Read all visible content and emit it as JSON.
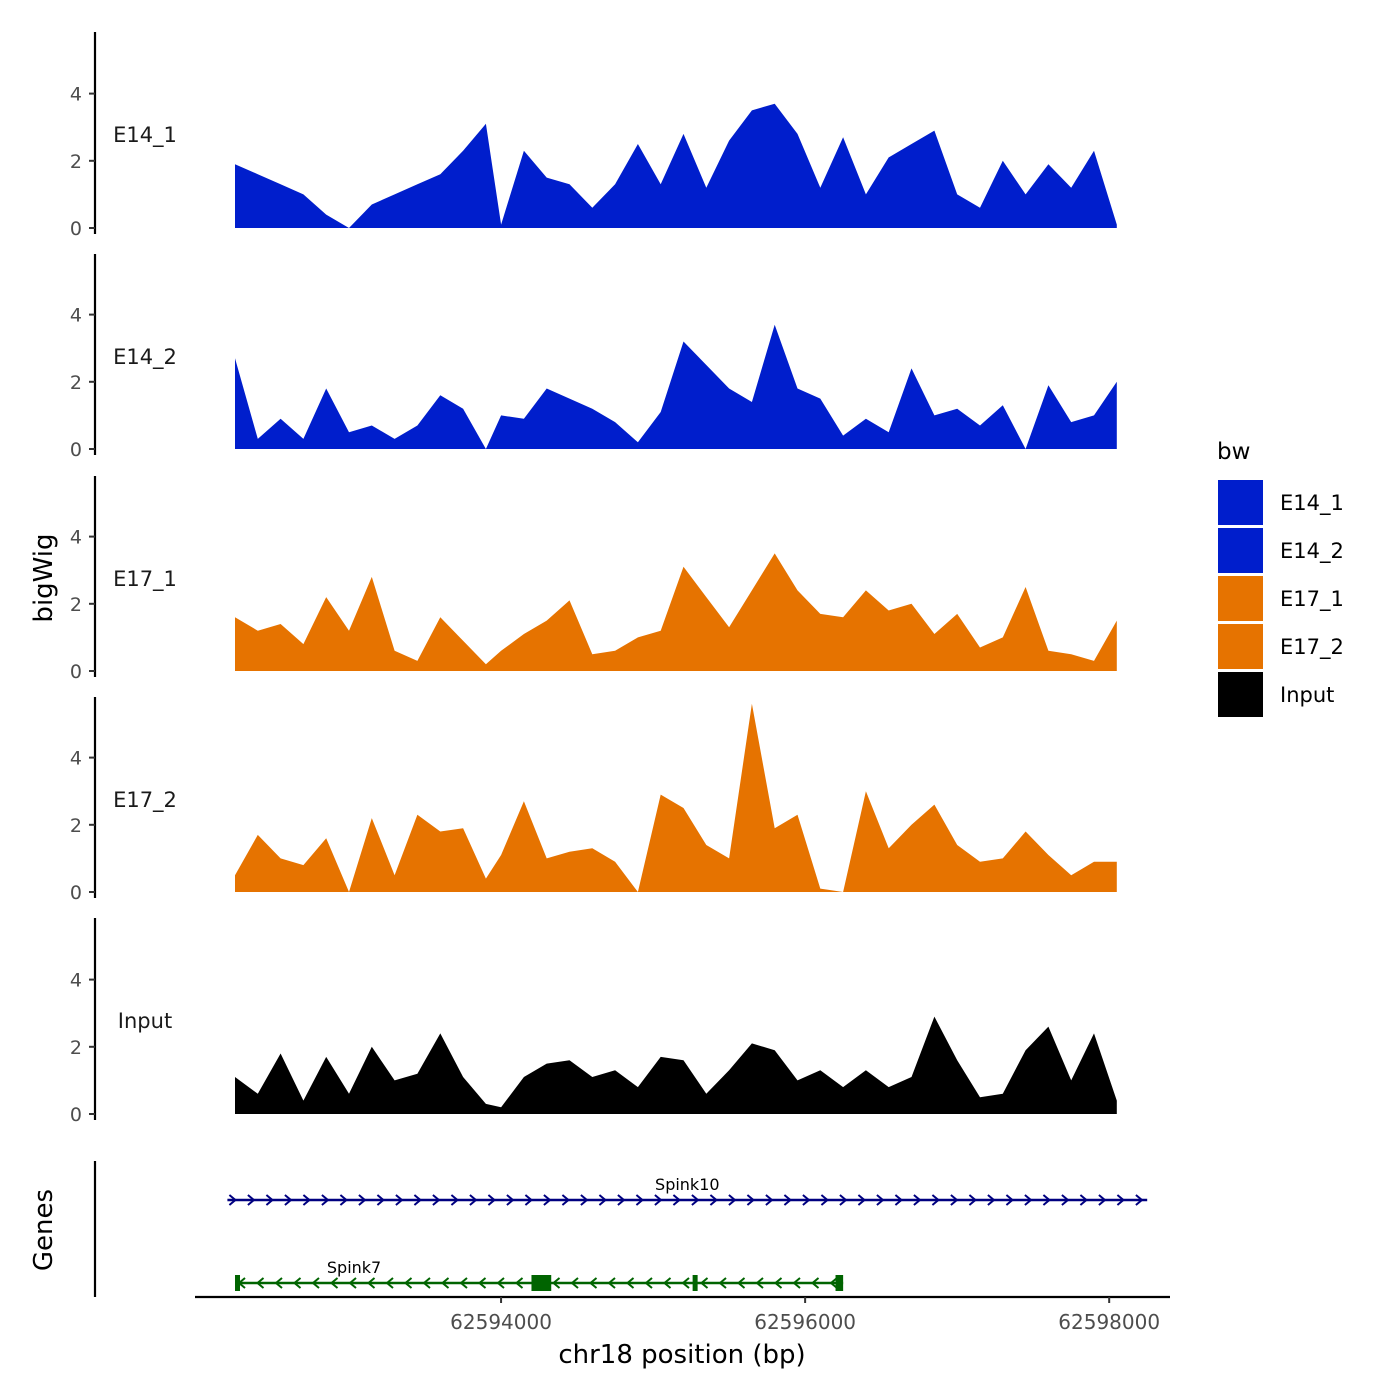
{
  "chart_data": {
    "type": "area",
    "ylabel": "bigWig",
    "xlabel": "chr18 position (bp)",
    "yticks": [
      0,
      2,
      4
    ],
    "ylim": [
      0,
      5.8
    ],
    "xlim": [
      62592000,
      62598400
    ],
    "xticks": [
      62594000,
      62596000,
      62598000
    ],
    "xtick_labels": [
      "62594000",
      "62596000",
      "62598000"
    ],
    "legend": {
      "title": "bw",
      "position": "right",
      "entries": [
        {
          "label": "E14_1",
          "color": "#001ECC"
        },
        {
          "label": "E14_2",
          "color": "#001ECC"
        },
        {
          "label": "E17_1",
          "color": "#E67300"
        },
        {
          "label": "E17_2",
          "color": "#E67300"
        },
        {
          "label": "Input",
          "color": "#000000"
        }
      ]
    },
    "series": [
      {
        "name": "E14_1",
        "color": "#001ECC",
        "x": [
          62592250,
          62592400,
          62592550,
          62592700,
          62592850,
          62593000,
          62593150,
          62593300,
          62593450,
          62593600,
          62593750,
          62593900,
          62594000,
          62594150,
          62594300,
          62594450,
          62594600,
          62594750,
          62594900,
          62595050,
          62595200,
          62595350,
          62595500,
          62595650,
          62595800,
          62595950,
          62596100,
          62596250,
          62596400,
          62596550,
          62596700,
          62596850,
          62597000,
          62597150,
          62597300,
          62597450,
          62597600,
          62597750,
          62597900,
          62598050
        ],
        "y": [
          1.9,
          1.6,
          1.3,
          1.0,
          0.4,
          0.0,
          0.7,
          1.0,
          1.3,
          1.6,
          2.3,
          3.1,
          0.1,
          2.3,
          1.5,
          1.3,
          0.6,
          1.3,
          2.5,
          1.3,
          2.8,
          1.2,
          2.6,
          3.5,
          3.7,
          2.8,
          1.2,
          2.7,
          1.0,
          2.1,
          2.5,
          2.9,
          1.0,
          0.6,
          2.0,
          1.0,
          1.9,
          1.2,
          2.3,
          0.1
        ]
      },
      {
        "name": "E14_2",
        "color": "#001ECC",
        "x": [
          62592250,
          62592400,
          62592550,
          62592700,
          62592850,
          62593000,
          62593150,
          62593300,
          62593450,
          62593600,
          62593750,
          62593900,
          62594000,
          62594150,
          62594300,
          62594450,
          62594600,
          62594750,
          62594900,
          62595050,
          62595200,
          62595350,
          62595500,
          62595650,
          62595800,
          62595950,
          62596100,
          62596250,
          62596400,
          62596550,
          62596700,
          62596850,
          62597000,
          62597150,
          62597300,
          62597450,
          62597600,
          62597750,
          62597900,
          62598050
        ],
        "y": [
          2.7,
          0.3,
          0.9,
          0.3,
          1.8,
          0.5,
          0.7,
          0.3,
          0.7,
          1.6,
          1.2,
          0.0,
          1.0,
          0.9,
          1.8,
          1.5,
          1.2,
          0.8,
          0.2,
          1.1,
          3.2,
          2.5,
          1.8,
          1.4,
          3.7,
          1.8,
          1.5,
          0.4,
          0.9,
          0.5,
          2.4,
          1.0,
          1.2,
          0.7,
          1.3,
          0.0,
          1.9,
          0.8,
          1.0,
          2.0
        ]
      },
      {
        "name": "E17_1",
        "color": "#E67300",
        "x": [
          62592250,
          62592400,
          62592550,
          62592700,
          62592850,
          62593000,
          62593150,
          62593300,
          62593450,
          62593600,
          62593750,
          62593900,
          62594000,
          62594150,
          62594300,
          62594450,
          62594600,
          62594750,
          62594900,
          62595050,
          62595200,
          62595350,
          62595500,
          62595650,
          62595800,
          62595950,
          62596100,
          62596250,
          62596400,
          62596550,
          62596700,
          62596850,
          62597000,
          62597150,
          62597300,
          62597450,
          62597600,
          62597750,
          62597900,
          62598050
        ],
        "y": [
          1.6,
          1.2,
          1.4,
          0.8,
          2.2,
          1.2,
          2.8,
          0.6,
          0.3,
          1.6,
          0.9,
          0.2,
          0.6,
          1.1,
          1.5,
          2.1,
          0.5,
          0.6,
          1.0,
          1.2,
          3.1,
          2.2,
          1.3,
          2.4,
          3.5,
          2.4,
          1.7,
          1.6,
          2.4,
          1.8,
          2.0,
          1.1,
          1.7,
          0.7,
          1.0,
          2.5,
          0.6,
          0.5,
          0.3,
          1.5
        ]
      },
      {
        "name": "E17_2",
        "color": "#E67300",
        "x": [
          62592250,
          62592400,
          62592550,
          62592700,
          62592850,
          62593000,
          62593150,
          62593300,
          62593450,
          62593600,
          62593750,
          62593900,
          62594000,
          62594150,
          62594300,
          62594450,
          62594600,
          62594750,
          62594900,
          62595050,
          62595200,
          62595350,
          62595500,
          62595650,
          62595800,
          62595950,
          62596100,
          62596250,
          62596400,
          62596550,
          62596700,
          62596850,
          62597000,
          62597150,
          62597300,
          62597450,
          62597600,
          62597750,
          62597900,
          62598050
        ],
        "y": [
          0.5,
          1.7,
          1.0,
          0.8,
          1.6,
          0.0,
          2.2,
          0.5,
          2.3,
          1.8,
          1.9,
          0.4,
          1.1,
          2.7,
          1.0,
          1.2,
          1.3,
          0.9,
          0.0,
          2.9,
          2.5,
          1.4,
          1.0,
          5.6,
          1.9,
          2.3,
          0.1,
          0.0,
          3.0,
          1.3,
          2.0,
          2.6,
          1.4,
          0.9,
          1.0,
          1.8,
          1.1,
          0.5,
          0.9,
          0.9
        ]
      },
      {
        "name": "Input",
        "color": "#000000",
        "x": [
          62592250,
          62592400,
          62592550,
          62592700,
          62592850,
          62593000,
          62593150,
          62593300,
          62593450,
          62593600,
          62593750,
          62593900,
          62594000,
          62594150,
          62594300,
          62594450,
          62594600,
          62594750,
          62594900,
          62595050,
          62595200,
          62595350,
          62595500,
          62595650,
          62595800,
          62595950,
          62596100,
          62596250,
          62596400,
          62596550,
          62596700,
          62596850,
          62597000,
          62597150,
          62597300,
          62597450,
          62597600,
          62597750,
          62597900,
          62598050
        ],
        "y": [
          1.1,
          0.6,
          1.8,
          0.4,
          1.7,
          0.6,
          2.0,
          1.0,
          1.2,
          2.4,
          1.1,
          0.3,
          0.2,
          1.1,
          1.5,
          1.6,
          1.1,
          1.3,
          0.8,
          1.7,
          1.6,
          0.6,
          1.3,
          2.1,
          1.9,
          1.0,
          1.3,
          0.8,
          1.3,
          0.8,
          1.1,
          2.9,
          1.6,
          0.5,
          0.6,
          1.9,
          2.6,
          1.0,
          2.4,
          0.4
        ]
      }
    ],
    "genes_track": {
      "label": "Genes",
      "genes": [
        {
          "name": "Spink10",
          "start": 62592200,
          "end": 62598250,
          "strand": "+",
          "color": "#000080",
          "row": 0,
          "exons": []
        },
        {
          "name": "Spink7",
          "start": 62592250,
          "end": 62596250,
          "strand": "-",
          "color": "#006400",
          "row": 1,
          "exons": [
            [
              62592250,
              62592280
            ],
            [
              62594200,
              62594330
            ],
            [
              62595260,
              62595280
            ],
            [
              62596200,
              62596250
            ]
          ]
        }
      ]
    }
  }
}
